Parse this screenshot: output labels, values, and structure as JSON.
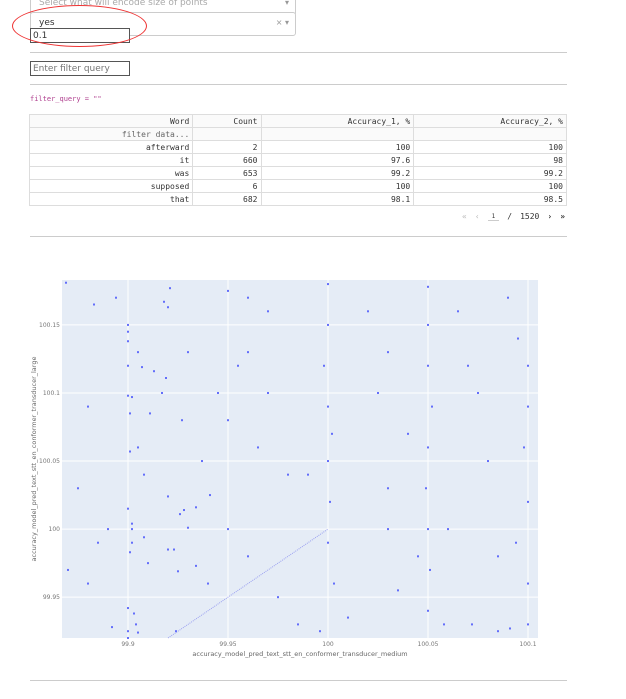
{
  "controls": {
    "size_dropdown_placeholder": "Select what will encode size of points",
    "selected_dropdown_value": "yes",
    "clear_icon": "×",
    "caret_icon": "▾",
    "size_input_value": "0.1",
    "filter_input_placeholder": "Enter filter query",
    "filter_query_text": "filter_query = \"\""
  },
  "table": {
    "columns": [
      "Word",
      "Count",
      "Accuracy_1, %",
      "Accuracy_2, %"
    ],
    "filter_placeholder": "filter data...",
    "rows": [
      [
        "afterward",
        "2",
        "100",
        "100"
      ],
      [
        "it",
        "660",
        "97.6",
        "98"
      ],
      [
        "was",
        "653",
        "99.2",
        "99.2"
      ],
      [
        "supposed",
        "6",
        "100",
        "100"
      ],
      [
        "that",
        "682",
        "98.1",
        "98.5"
      ]
    ],
    "pagination": {
      "first": "«",
      "prev": "‹",
      "current": "1",
      "separator": "/",
      "total": "1520",
      "next": "›",
      "last": "»"
    }
  },
  "chart_data": {
    "type": "scatter",
    "xlabel": "accuracy_model_pred_text_stt_en_conformer_transducer_medium",
    "ylabel": "accuracy_model_pred_text_stt_en_conformer_transducer_large",
    "xlim": [
      99.867,
      100.105
    ],
    "ylim": [
      99.92,
      100.183
    ],
    "xticks": [
      "99.9",
      "99.95",
      "100",
      "100.05",
      "100.1"
    ],
    "yticks": [
      "99.95",
      "100",
      "100.05",
      "100.1",
      "100.15"
    ],
    "grid": true,
    "marker_color": "#636efa",
    "plot_bg": "#e5ecf6",
    "diagonal": [
      [
        99.92,
        99.92
      ],
      [
        100,
        100
      ]
    ],
    "points": [
      [
        99.869,
        100.181
      ],
      [
        99.883,
        100.165
      ],
      [
        99.894,
        100.17
      ],
      [
        99.921,
        100.177
      ],
      [
        99.918,
        100.167
      ],
      [
        99.92,
        100.163
      ],
      [
        99.907,
        100.119
      ],
      [
        99.9,
        100.12
      ],
      [
        99.913,
        100.116
      ],
      [
        99.919,
        100.111
      ],
      [
        99.9,
        100.098
      ],
      [
        99.911,
        100.085
      ],
      [
        99.917,
        100.1
      ],
      [
        99.927,
        100.08
      ],
      [
        99.937,
        100.05
      ],
      [
        99.9,
        100.015
      ],
      [
        99.928,
        100.014
      ],
      [
        99.934,
        100.016
      ],
      [
        99.92,
        100.024
      ],
      [
        99.926,
        100.011
      ],
      [
        99.941,
        100.025
      ],
      [
        99.93,
        100.001
      ],
      [
        99.923,
        99.985
      ],
      [
        99.92,
        99.985
      ],
      [
        99.934,
        99.973
      ],
      [
        99.925,
        99.969
      ],
      [
        99.901,
        99.983
      ],
      [
        99.9,
        99.942
      ],
      [
        99.892,
        99.928
      ],
      [
        99.905,
        99.924
      ],
      [
        99.924,
        99.925
      ],
      [
        99.9,
        99.92
      ],
      [
        99.9,
        100.15
      ],
      [
        99.905,
        100.13
      ],
      [
        99.9,
        100.138
      ],
      [
        99.9,
        100.145
      ],
      [
        99.902,
        100.097
      ],
      [
        99.901,
        100.085
      ],
      [
        99.905,
        100.06
      ],
      [
        99.901,
        100.057
      ],
      [
        99.908,
        100.04
      ],
      [
        99.902,
        100.004
      ],
      [
        99.902,
        100.0
      ],
      [
        99.908,
        99.994
      ],
      [
        99.903,
        99.938
      ],
      [
        99.904,
        99.93
      ],
      [
        99.9,
        99.925
      ],
      [
        99.902,
        99.99
      ],
      [
        99.91,
        99.975
      ],
      [
        99.88,
        99.96
      ],
      [
        99.885,
        99.99
      ],
      [
        99.89,
        100.0
      ],
      [
        99.95,
        100.175
      ],
      [
        99.96,
        100.17
      ],
      [
        99.97,
        100.16
      ],
      [
        99.96,
        100.13
      ],
      [
        99.955,
        100.12
      ],
      [
        99.945,
        100.1
      ],
      [
        99.95,
        100.08
      ],
      [
        99.965,
        100.06
      ],
      [
        99.98,
        100.04
      ],
      [
        99.95,
        100.0
      ],
      [
        99.96,
        99.98
      ],
      [
        99.94,
        99.96
      ],
      [
        99.975,
        99.95
      ],
      [
        99.985,
        99.93
      ],
      [
        99.996,
        99.925
      ],
      [
        100.0,
        100.18
      ],
      [
        100.0,
        100.15
      ],
      [
        99.998,
        100.12
      ],
      [
        100.0,
        100.09
      ],
      [
        100.002,
        100.07
      ],
      [
        100.0,
        100.05
      ],
      [
        100.001,
        100.02
      ],
      [
        100.0,
        99.99
      ],
      [
        100.003,
        99.96
      ],
      [
        100.01,
        99.935
      ],
      [
        100.02,
        100.16
      ],
      [
        100.03,
        100.13
      ],
      [
        100.025,
        100.1
      ],
      [
        100.04,
        100.07
      ],
      [
        100.03,
        100.03
      ],
      [
        100.045,
        99.98
      ],
      [
        100.035,
        99.955
      ],
      [
        100.058,
        99.93
      ],
      [
        100.05,
        100.178
      ],
      [
        100.05,
        100.15
      ],
      [
        100.05,
        100.12
      ],
      [
        100.052,
        100.09
      ],
      [
        100.05,
        100.06
      ],
      [
        100.049,
        100.03
      ],
      [
        100.05,
        100.0
      ],
      [
        100.051,
        99.97
      ],
      [
        100.05,
        99.94
      ],
      [
        100.065,
        100.16
      ],
      [
        100.07,
        100.12
      ],
      [
        100.075,
        100.1
      ],
      [
        100.08,
        100.05
      ],
      [
        100.072,
        99.93
      ],
      [
        100.085,
        99.925
      ],
      [
        100.09,
        100.17
      ],
      [
        100.095,
        100.14
      ],
      [
        100.1,
        100.12
      ],
      [
        100.1,
        100.09
      ],
      [
        100.098,
        100.06
      ],
      [
        100.1,
        100.02
      ],
      [
        100.094,
        99.99
      ],
      [
        100.1,
        99.96
      ],
      [
        100.1,
        99.93
      ],
      [
        100.091,
        99.927
      ],
      [
        100.085,
        99.98
      ],
      [
        100.06,
        100.0
      ],
      [
        100.03,
        100.0
      ],
      [
        99.99,
        100.04
      ],
      [
        99.97,
        100.1
      ],
      [
        99.93,
        100.13
      ],
      [
        99.88,
        100.09
      ],
      [
        99.875,
        100.03
      ],
      [
        99.87,
        99.97
      ]
    ]
  }
}
